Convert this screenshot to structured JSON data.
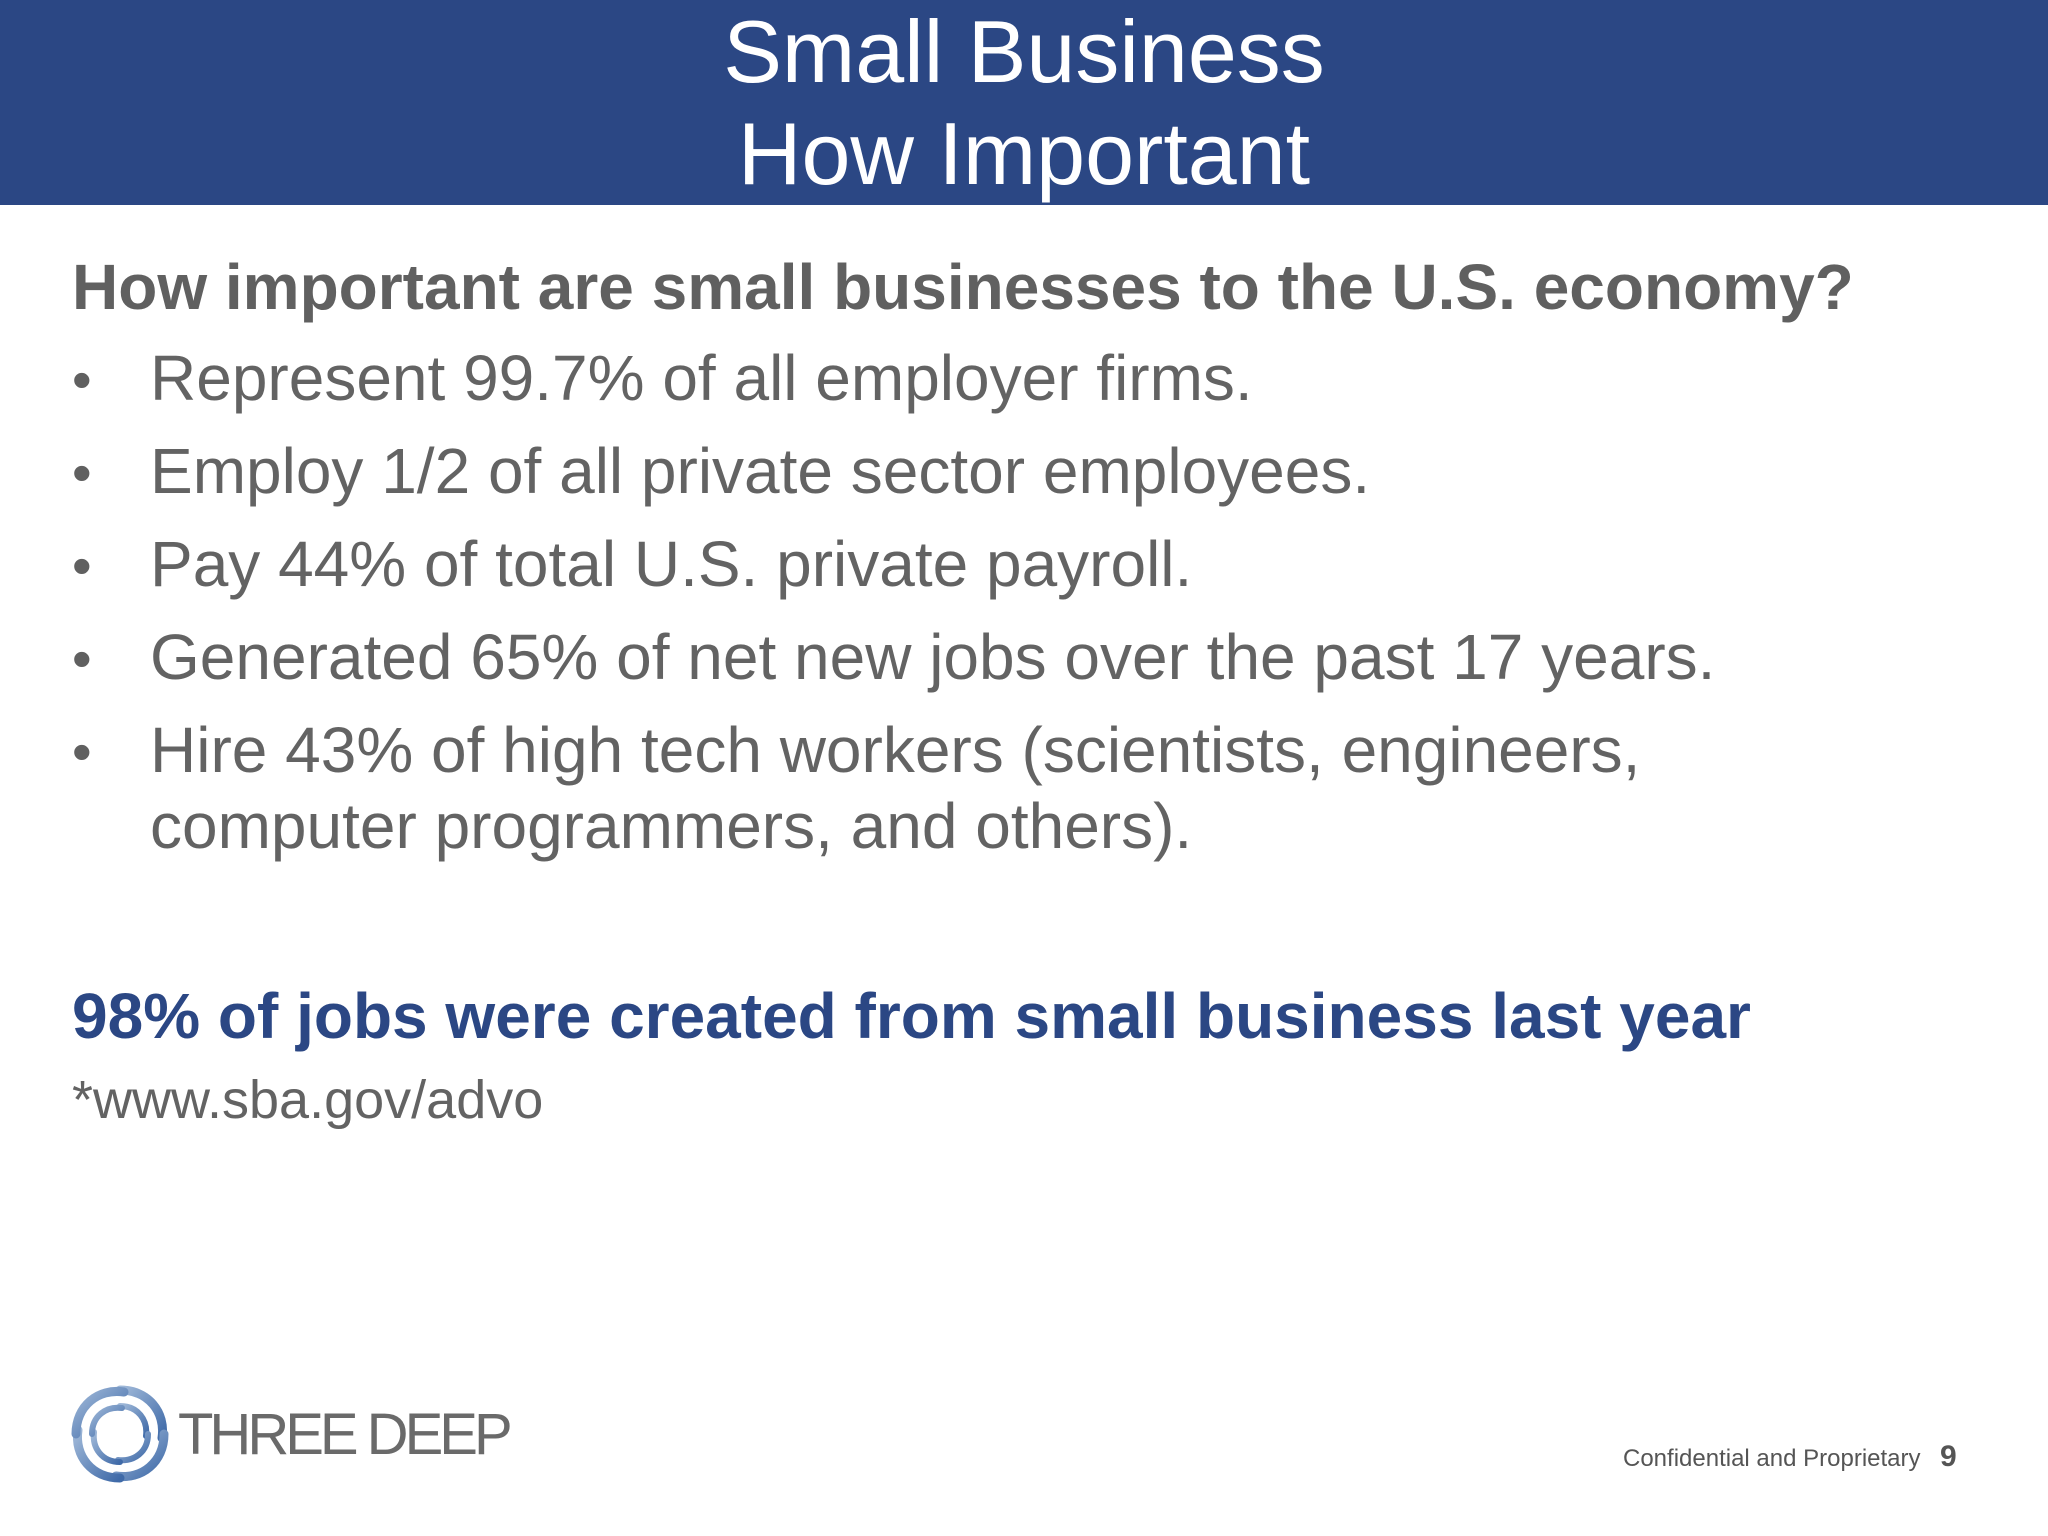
{
  "header": {
    "title_line1": "Small Business",
    "title_line2": "How Important",
    "background_color": "#2b4784"
  },
  "body": {
    "question": "How important are small businesses to the U.S. economy?",
    "bullets": [
      "Represent 99.7% of all employer firms.",
      "Employ 1/2 of all private sector employees.",
      "Pay 44% of total U.S. private payroll.",
      "Generated 65% of net new jobs over the past 17 years.",
      "Hire 43% of high tech workers (scientists, engineers, computer programmers, and others)."
    ],
    "bullet_glyph": "•",
    "highlight": "98% of jobs were created from small business last year",
    "source": "*www.sba.gov/advo"
  },
  "footer": {
    "logo_text": "THREE DEEP",
    "logo_icon": "swirl-logo-icon",
    "confidential": "Confidential and Proprietary",
    "page_number": "9"
  },
  "colors": {
    "brand_blue": "#2b4784",
    "body_gray": "#636363"
  }
}
